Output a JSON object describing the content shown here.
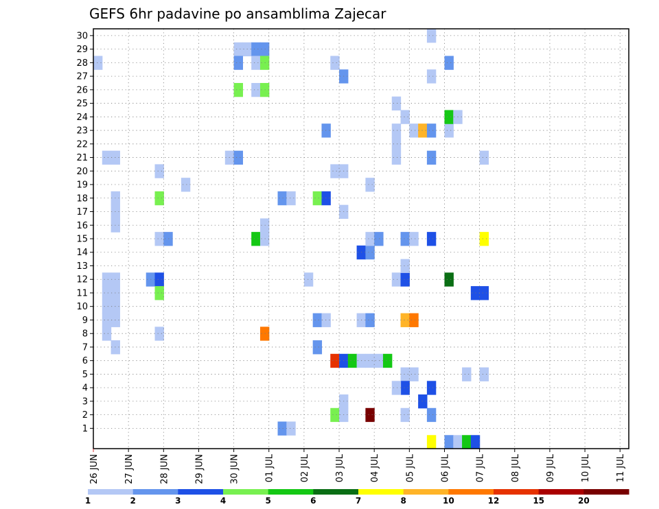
{
  "chart_data": {
    "type": "heatmap",
    "title": "GEFS 6hr padavine po ansamblima Zajecar",
    "xlabel": "",
    "ylabel": "",
    "x_tick_labels": [
      "26 JUN",
      "27 JUN",
      "28 JUN",
      "29 JUN",
      "30 JUN",
      "01 JUL",
      "02 JUL",
      "03 JUL",
      "04 JUL",
      "05 JUL",
      "06 JUL",
      "07 JUL",
      "08 JUL",
      "09 JUL",
      "10 JUL",
      "11 JUL"
    ],
    "xlim_days": [
      0,
      15.25
    ],
    "steps_per_day": 4,
    "y_members": [
      1,
      30
    ],
    "y_tick_labels": [
      "1",
      "2",
      "3",
      "4",
      "5",
      "6",
      "7",
      "8",
      "9",
      "10",
      "11",
      "12",
      "13",
      "14",
      "15",
      "16",
      "17",
      "18",
      "19",
      "20",
      "21",
      "22",
      "23",
      "24",
      "25",
      "26",
      "27",
      "28",
      "29",
      "30"
    ],
    "grid": "dotted",
    "legend": {
      "position": "bottom",
      "labels": [
        "1",
        "2",
        "3",
        "4",
        "5",
        "6",
        "7",
        "8",
        "10",
        "12",
        "15",
        "20"
      ],
      "colors": [
        "#b4c8f5",
        "#6495ed",
        "#1e50e6",
        "#78f050",
        "#14c814",
        "#0a6e14",
        "#ffff00",
        "#ffb428",
        "#ff7800",
        "#e63200",
        "#aa0000",
        "#780000"
      ]
    },
    "cells_note": "each cell: [time step index (6h steps from 26 JUN 00z), ensemble member, precipitation class 1-12]",
    "cells": [
      [
        0,
        28,
        1
      ],
      [
        1,
        21,
        1
      ],
      [
        2,
        21,
        1
      ],
      [
        1,
        12,
        1
      ],
      [
        1,
        11,
        1
      ],
      [
        1,
        10,
        1
      ],
      [
        1,
        9,
        1
      ],
      [
        1,
        8,
        1
      ],
      [
        2,
        12,
        1
      ],
      [
        2,
        11,
        1
      ],
      [
        2,
        10,
        1
      ],
      [
        2,
        9,
        1
      ],
      [
        2,
        7,
        1
      ],
      [
        2,
        18,
        1
      ],
      [
        2,
        17,
        1
      ],
      [
        2,
        16,
        1
      ],
      [
        6,
        12,
        2
      ],
      [
        7,
        12,
        3
      ],
      [
        7,
        11,
        4
      ],
      [
        7,
        20,
        1
      ],
      [
        7,
        18,
        4
      ],
      [
        7,
        15,
        1
      ],
      [
        8,
        15,
        2
      ],
      [
        7,
        8,
        1
      ],
      [
        10,
        19,
        1
      ],
      [
        15,
        21,
        1
      ],
      [
        16,
        21,
        2
      ],
      [
        16,
        29,
        1
      ],
      [
        17,
        29,
        1
      ],
      [
        16,
        28,
        2
      ],
      [
        16,
        26,
        4
      ],
      [
        18,
        29,
        2
      ],
      [
        19,
        29,
        2
      ],
      [
        18,
        28,
        1
      ],
      [
        19,
        28,
        4
      ],
      [
        18,
        26,
        1
      ],
      [
        19,
        26,
        4
      ],
      [
        18,
        15,
        5
      ],
      [
        19,
        15,
        1
      ],
      [
        19,
        16,
        1
      ],
      [
        19,
        8,
        9
      ],
      [
        21,
        18,
        2
      ],
      [
        22,
        18,
        1
      ],
      [
        21,
        1,
        2
      ],
      [
        22,
        1,
        1
      ],
      [
        24,
        12,
        1
      ],
      [
        25,
        18,
        4
      ],
      [
        26,
        18,
        3
      ],
      [
        25,
        9,
        2
      ],
      [
        26,
        9,
        1
      ],
      [
        25,
        7,
        2
      ],
      [
        26,
        23,
        2
      ],
      [
        27,
        28,
        1
      ],
      [
        27,
        6,
        10
      ],
      [
        28,
        6,
        3
      ],
      [
        29,
        6,
        5
      ],
      [
        30,
        6,
        1
      ],
      [
        31,
        6,
        1
      ],
      [
        27,
        2,
        4
      ],
      [
        28,
        2,
        1
      ],
      [
        28,
        3,
        1
      ],
      [
        27,
        20,
        1
      ],
      [
        28,
        20,
        1
      ],
      [
        28,
        27,
        2
      ],
      [
        28,
        17,
        1
      ],
      [
        30,
        14,
        3
      ],
      [
        31,
        14,
        2
      ],
      [
        31,
        15,
        1
      ],
      [
        30,
        9,
        1
      ],
      [
        31,
        9,
        2
      ],
      [
        31,
        19,
        1
      ],
      [
        31,
        2,
        12
      ],
      [
        32,
        15,
        2
      ],
      [
        32,
        6,
        1
      ],
      [
        33,
        6,
        5
      ],
      [
        34,
        25,
        1
      ],
      [
        34,
        22,
        1
      ],
      [
        34,
        21,
        1
      ],
      [
        34,
        23,
        1
      ],
      [
        34,
        12,
        1
      ],
      [
        35,
        12,
        3
      ],
      [
        35,
        13,
        1
      ],
      [
        35,
        24,
        1
      ],
      [
        35,
        15,
        2
      ],
      [
        36,
        15,
        1
      ],
      [
        35,
        9,
        8
      ],
      [
        36,
        9,
        9
      ],
      [
        35,
        5,
        1
      ],
      [
        36,
        5,
        1
      ],
      [
        35,
        4,
        3
      ],
      [
        34,
        4,
        1
      ],
      [
        35,
        2,
        1
      ],
      [
        36,
        23,
        1
      ],
      [
        37,
        23,
        8
      ],
      [
        38,
        23,
        2
      ],
      [
        38,
        27,
        1
      ],
      [
        38,
        30,
        1
      ],
      [
        38,
        21,
        2
      ],
      [
        38,
        15,
        3
      ],
      [
        38,
        4,
        3
      ],
      [
        37,
        3,
        3
      ],
      [
        38,
        2,
        2
      ],
      [
        38,
        0,
        7
      ],
      [
        40,
        28,
        2
      ],
      [
        40,
        23,
        1
      ],
      [
        40,
        24,
        5
      ],
      [
        41,
        24,
        1
      ],
      [
        40,
        12,
        6
      ],
      [
        40,
        0,
        2
      ],
      [
        41,
        0,
        1
      ],
      [
        42,
        0,
        5
      ],
      [
        43,
        0,
        3
      ],
      [
        42,
        5,
        1
      ],
      [
        44,
        5,
        1
      ],
      [
        44,
        21,
        1
      ],
      [
        44,
        15,
        7
      ],
      [
        43,
        11,
        3
      ],
      [
        44,
        11,
        3
      ]
    ]
  }
}
